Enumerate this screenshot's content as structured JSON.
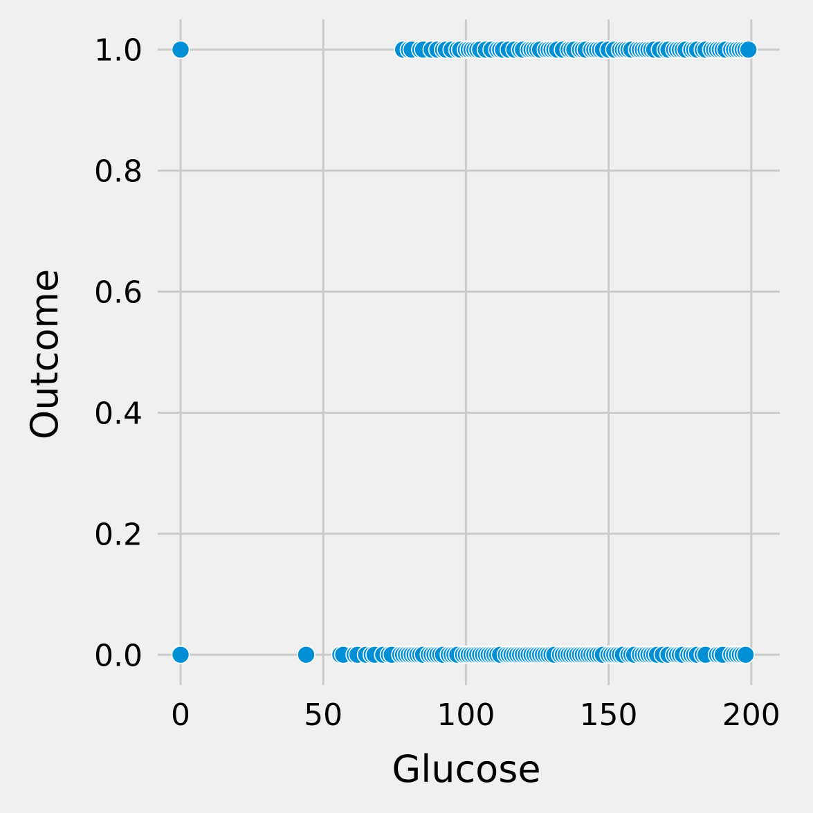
{
  "chart_data": {
    "type": "scatter",
    "xlabel": "Glucose",
    "ylabel": "Outcome",
    "xlim": [
      -8,
      210
    ],
    "ylim": [
      -0.05,
      1.05
    ],
    "x_ticks": [
      0,
      50,
      100,
      150,
      200
    ],
    "x_tick_labels": [
      "0",
      "50",
      "100",
      "150",
      "200"
    ],
    "y_ticks": [
      0.0,
      0.2,
      0.4,
      0.6,
      0.8,
      1.0
    ],
    "y_tick_labels": [
      "0.0",
      "0.2",
      "0.4",
      "0.6",
      "0.8",
      "1.0"
    ],
    "grid": true,
    "colors": {
      "point": "#008fd5",
      "background": "#f0f0f0",
      "grid": "#cbcbcb"
    },
    "series": [
      {
        "x": [
          0,
          78,
          80,
          81,
          84,
          85,
          88,
          90,
          92,
          93,
          95,
          97,
          98,
          100,
          101,
          102,
          103,
          104,
          105,
          107,
          109,
          111,
          112,
          113,
          115,
          117,
          119,
          120,
          122,
          123,
          124,
          125,
          126,
          128,
          129,
          130,
          131,
          132,
          134,
          136,
          137,
          138,
          140,
          141,
          142,
          144,
          145,
          146,
          147,
          148,
          150,
          152,
          154,
          155,
          156,
          157,
          158,
          160,
          161,
          162,
          163,
          164,
          165,
          166,
          168,
          170,
          171,
          173,
          174,
          175,
          176,
          177,
          179,
          180,
          181,
          183,
          184,
          186,
          187,
          188,
          189,
          190,
          191,
          193,
          194,
          195,
          196,
          197,
          198,
          199
        ],
        "y": [
          1,
          1,
          1,
          1,
          1,
          1,
          1,
          1,
          1,
          1,
          1,
          1,
          1,
          1,
          1,
          1,
          1,
          1,
          1,
          1,
          1,
          1,
          1,
          1,
          1,
          1,
          1,
          1,
          1,
          1,
          1,
          1,
          1,
          1,
          1,
          1,
          1,
          1,
          1,
          1,
          1,
          1,
          1,
          1,
          1,
          1,
          1,
          1,
          1,
          1,
          1,
          1,
          1,
          1,
          1,
          1,
          1,
          1,
          1,
          1,
          1,
          1,
          1,
          1,
          1,
          1,
          1,
          1,
          1,
          1,
          1,
          1,
          1,
          1,
          1,
          1,
          1,
          1,
          1,
          1,
          1,
          1,
          1,
          1,
          1,
          1,
          1,
          1,
          1,
          1
        ]
      },
      {
        "x": [
          0,
          44,
          56,
          57,
          61,
          62,
          65,
          67,
          68,
          71,
          73,
          74,
          77,
          78,
          79,
          80,
          81,
          82,
          83,
          84,
          85,
          87,
          88,
          89,
          90,
          91,
          92,
          94,
          95,
          96,
          97,
          99,
          100,
          101,
          102,
          103,
          104,
          105,
          106,
          107,
          108,
          109,
          110,
          111,
          112,
          114,
          115,
          116,
          117,
          118,
          119,
          120,
          121,
          122,
          123,
          124,
          125,
          126,
          127,
          128,
          129,
          130,
          131,
          133,
          134,
          135,
          136,
          137,
          138,
          139,
          140,
          141,
          142,
          143,
          144,
          145,
          146,
          147,
          148,
          150,
          151,
          152,
          153,
          154,
          155,
          157,
          158,
          159,
          161,
          162,
          163,
          164,
          165,
          166,
          167,
          169,
          171,
          173,
          174,
          175,
          176,
          178,
          179,
          180,
          181,
          183,
          184,
          188,
          189,
          190,
          193,
          194,
          195,
          196,
          197,
          198
        ],
        "y": [
          0,
          0,
          0,
          0,
          0,
          0,
          0,
          0,
          0,
          0,
          0,
          0,
          0,
          0,
          0,
          0,
          0,
          0,
          0,
          0,
          0,
          0,
          0,
          0,
          0,
          0,
          0,
          0,
          0,
          0,
          0,
          0,
          0,
          0,
          0,
          0,
          0,
          0,
          0,
          0,
          0,
          0,
          0,
          0,
          0,
          0,
          0,
          0,
          0,
          0,
          0,
          0,
          0,
          0,
          0,
          0,
          0,
          0,
          0,
          0,
          0,
          0,
          0,
          0,
          0,
          0,
          0,
          0,
          0,
          0,
          0,
          0,
          0,
          0,
          0,
          0,
          0,
          0,
          0,
          0,
          0,
          0,
          0,
          0,
          0,
          0,
          0,
          0,
          0,
          0,
          0,
          0,
          0,
          0,
          0,
          0,
          0,
          0,
          0,
          0,
          0,
          0,
          0,
          0,
          0,
          0,
          0,
          0,
          0,
          0,
          0,
          0,
          0,
          0,
          0,
          0
        ]
      }
    ]
  }
}
